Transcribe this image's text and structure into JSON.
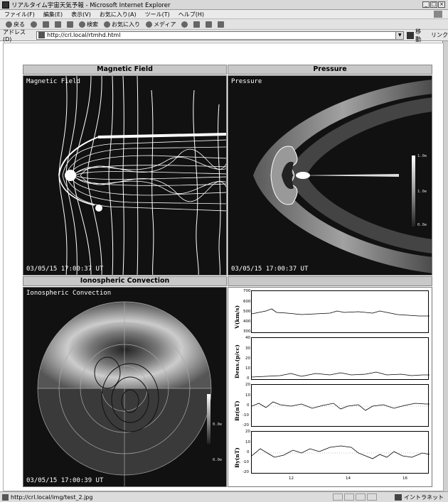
{
  "window": {
    "title": "リアルタイム宇宙天気予報 - Microsoft Internet Explorer"
  },
  "menu": [
    "ファイル(F)",
    "編集(E)",
    "表示(V)",
    "お気に入り(A)",
    "ツール(T)",
    "ヘルプ(H)"
  ],
  "toolbar": {
    "back": "戻る",
    "search": "検索",
    "favorites": "お気に入り",
    "media": "メディア"
  },
  "address": {
    "label": "アドレス(D)",
    "url": "http://crl.local/rtmhd.html",
    "go": "移動",
    "links": "リンク"
  },
  "panels": {
    "magnetic": {
      "header": "Magnetic Field",
      "label": "Magnetic Field",
      "time": "03/05/15 17:00:37 UT"
    },
    "pressure": {
      "header": "Pressure",
      "label": "Pressure",
      "time": "03/05/15 17:00:37 UT",
      "cbar": [
        "1.0e",
        "1.0e",
        "0.0e"
      ]
    },
    "iono": {
      "header": "Ionospheric Convection",
      "label": "Ionospheric Convection",
      "time": "03/05/15 17:00:39 UT",
      "cbar": [
        "0.0e",
        "0.0e"
      ]
    }
  },
  "plots": {
    "vx": {
      "label": "V(km/s)",
      "ticks": [
        "700",
        "600",
        "500",
        "400",
        "300"
      ]
    },
    "dens": {
      "label": "Dens.(p/cc)",
      "ticks": [
        "40",
        "30",
        "20",
        "10",
        "0"
      ]
    },
    "bz": {
      "label": "Bz(nT)",
      "ticks": [
        "20",
        "10",
        "0",
        "-10",
        "-20"
      ]
    },
    "by": {
      "label": "By(nT)",
      "ticks": [
        "20",
        "10",
        "0",
        "-10",
        "-20"
      ]
    },
    "xticks": [
      "12",
      "14",
      "16"
    ]
  },
  "status": {
    "text": "http://crl.local/img/test_2.jpg",
    "zone": "イントラネット"
  }
}
